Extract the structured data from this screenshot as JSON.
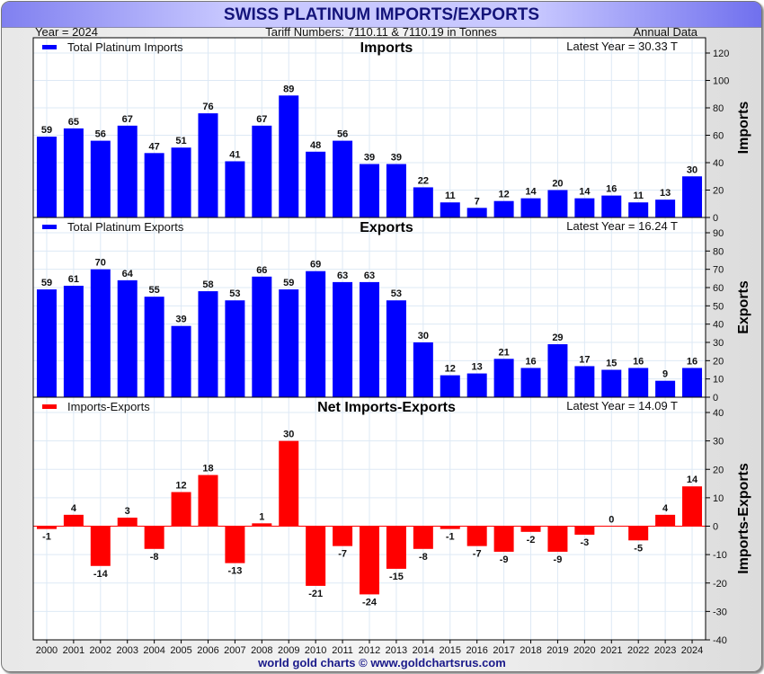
{
  "header": {
    "title": "SWISS PLATINUM IMPORTS/EXPORTS",
    "year_label": "Year = 2024",
    "tariff_label": "Tariff Numbers: 7110.11 & 7110.19 in Tonnes",
    "frequency_label": "Annual Data"
  },
  "footer": "world gold charts © www.goldchartsrus.com",
  "chart_data": [
    {
      "type": "bar",
      "title": "Imports",
      "legend": "Total Platinum Imports",
      "latest": "Latest Year = 30.33 T",
      "ylabel": "Imports",
      "ylim": [
        0,
        120
      ],
      "yticks": [
        0,
        20,
        40,
        60,
        80,
        100,
        120
      ],
      "color": "#0000ff",
      "categories": [
        "2000",
        "2001",
        "2002",
        "2003",
        "2004",
        "2005",
        "2006",
        "2007",
        "2008",
        "2009",
        "2010",
        "2011",
        "2012",
        "2013",
        "2014",
        "2015",
        "2016",
        "2017",
        "2018",
        "2019",
        "2020",
        "2021",
        "2022",
        "2023",
        "2024"
      ],
      "values": [
        59,
        65,
        56,
        67,
        47,
        51,
        76,
        41,
        67,
        89,
        48,
        56,
        39,
        39,
        22,
        11,
        7,
        12,
        14,
        20,
        14,
        16,
        11,
        13,
        30
      ]
    },
    {
      "type": "bar",
      "title": "Exports",
      "legend": "Total Platinum Exports",
      "latest": "Latest Year = 16.24 T",
      "ylabel": "Exports",
      "ylim": [
        0,
        90
      ],
      "yticks": [
        0,
        10,
        20,
        30,
        40,
        50,
        60,
        70,
        80,
        90
      ],
      "color": "#0000ff",
      "categories": [
        "2000",
        "2001",
        "2002",
        "2003",
        "2004",
        "2005",
        "2006",
        "2007",
        "2008",
        "2009",
        "2010",
        "2011",
        "2012",
        "2013",
        "2014",
        "2015",
        "2016",
        "2017",
        "2018",
        "2019",
        "2020",
        "2021",
        "2022",
        "2023",
        "2024"
      ],
      "values": [
        59,
        61,
        70,
        64,
        55,
        39,
        58,
        53,
        66,
        59,
        69,
        63,
        63,
        53,
        30,
        12,
        13,
        21,
        16,
        29,
        17,
        15,
        16,
        9,
        16
      ]
    },
    {
      "type": "bar",
      "title": "Net Imports-Exports",
      "legend": "Imports-Exports",
      "latest": "Latest Year = 14.09 T",
      "ylabel": "Imports-Exports",
      "ylim": [
        -40,
        40
      ],
      "yticks": [
        -40,
        -30,
        -20,
        -10,
        0,
        10,
        20,
        30,
        40
      ],
      "color": "#ff0000",
      "categories": [
        "2000",
        "2001",
        "2002",
        "2003",
        "2004",
        "2005",
        "2006",
        "2007",
        "2008",
        "2009",
        "2010",
        "2011",
        "2012",
        "2013",
        "2014",
        "2015",
        "2016",
        "2017",
        "2018",
        "2019",
        "2020",
        "2021",
        "2022",
        "2023",
        "2024"
      ],
      "values": [
        -1,
        4,
        -14,
        3,
        -8,
        12,
        18,
        -13,
        1,
        30,
        -21,
        -7,
        -24,
        -15,
        -8,
        -1,
        -7,
        -9,
        -2,
        -9,
        -3,
        0,
        -5,
        4,
        14
      ]
    }
  ]
}
